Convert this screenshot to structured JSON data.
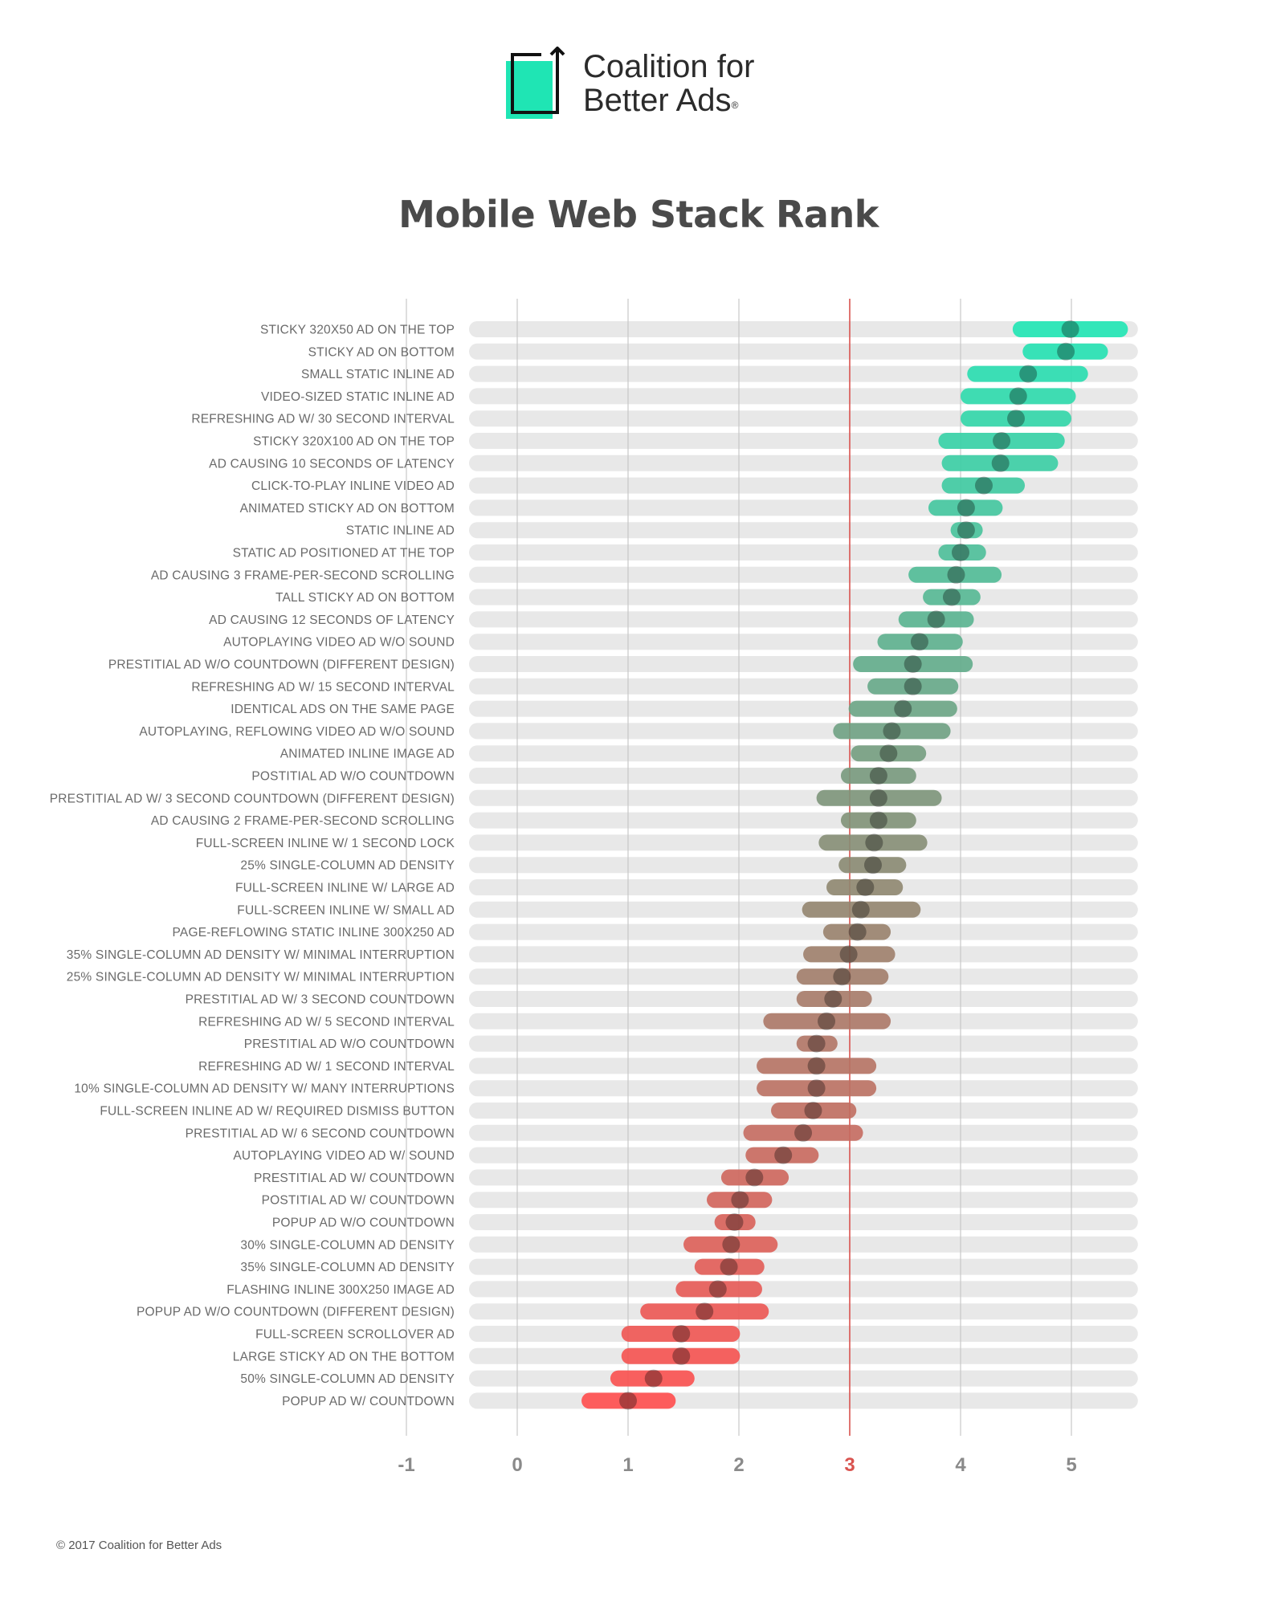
{
  "brand": {
    "name_line1": "Coalition for",
    "name_line2": "Better Ads",
    "registered_mark": "®",
    "accent": "#1fe5b4"
  },
  "footer": {
    "copyright": "© 2017 Coalition for Better Ads"
  },
  "chart_data": {
    "type": "range-dot",
    "title": "Mobile Web Stack Rank",
    "xlim": [
      -1.4,
      5.6
    ],
    "x_ticks": [
      -1,
      0,
      1,
      2,
      3,
      4,
      5
    ],
    "threshold": 3,
    "grid": true,
    "colors": {
      "high": "#1fe5b4",
      "mid": "#8a8a72",
      "low": "#ff4d4d",
      "threshold": "#d9534f",
      "track": "#e8e8e8"
    },
    "categories": [
      "STICKY 320X50 AD ON THE TOP",
      "STICKY AD ON BOTTOM",
      "SMALL STATIC INLINE AD",
      "VIDEO-SIZED STATIC INLINE AD",
      "REFRESHING AD W/ 30 SECOND INTERVAL",
      "STICKY 320X100 AD ON THE TOP",
      "AD CAUSING 10 SECONDS OF LATENCY",
      "CLICK-TO-PLAY INLINE VIDEO AD",
      "ANIMATED STICKY AD ON BOTTOM",
      "STATIC INLINE AD",
      "STATIC AD POSITIONED AT THE TOP",
      "AD CAUSING 3 FRAME-PER-SECOND SCROLLING",
      "TALL STICKY AD ON BOTTOM",
      "AD CAUSING 12 SECONDS OF LATENCY",
      "AUTOPLAYING VIDEO AD W/O SOUND",
      "PRESTITIAL AD W/O COUNTDOWN (DIFFERENT DESIGN)",
      "REFRESHING AD W/ 15 SECOND INTERVAL",
      "IDENTICAL ADS ON THE SAME PAGE",
      "AUTOPLAYING, REFLOWING VIDEO AD W/O SOUND",
      "ANIMATED INLINE IMAGE AD",
      "POSTITIAL AD W/O COUNTDOWN",
      "PRESTITIAL AD W/ 3 SECOND COUNTDOWN (DIFFERENT DESIGN)",
      "AD CAUSING 2 FRAME-PER-SECOND SCROLLING",
      "FULL-SCREEN INLINE W/ 1 SECOND LOCK",
      "25% SINGLE-COLUMN AD DENSITY",
      "FULL-SCREEN INLINE W/ LARGE AD",
      "FULL-SCREEN INLINE W/ SMALL AD",
      "PAGE-REFLOWING STATIC INLINE 300X250 AD",
      "35% SINGLE-COLUMN AD DENSITY W/ MINIMAL INTERRUPTION",
      "25% SINGLE-COLUMN AD DENSITY W/ MINIMAL INTERRUPTION",
      "PRESTITIAL AD W/ 3 SECOND COUNTDOWN",
      "REFRESHING AD W/ 5 SECOND INTERVAL",
      "PRESTITIAL AD W/O COUNTDOWN",
      "REFRESHING AD W/ 1 SECOND INTERVAL",
      "10% SINGLE-COLUMN AD DENSITY W/ MANY INTERRUPTIONS",
      "FULL-SCREEN INLINE AD W/ REQUIRED DISMISS BUTTON",
      "PRESTITIAL AD W/ 6 SECOND COUNTDOWN",
      "AUTOPLAYING VIDEO AD W/ SOUND",
      "PRESTITIAL AD W/ COUNTDOWN",
      "POSTITIAL AD W/ COUNTDOWN",
      "POPUP AD W/O COUNTDOWN",
      "30% SINGLE-COLUMN AD DENSITY",
      "35% SINGLE-COLUMN AD DENSITY",
      "FLASHING INLINE 300X250 IMAGE AD",
      "POPUP AD W/O COUNTDOWN (DIFFERENT DESIGN)",
      "FULL-SCREEN SCROLLOVER AD",
      "LARGE STICKY AD ON THE BOTTOM",
      "50% SINGLE-COLUMN AD DENSITY",
      "POPUP AD W/ COUNTDOWN"
    ],
    "low": [
      4.47,
      4.56,
      4.06,
      4.0,
      4.0,
      3.8,
      3.83,
      3.83,
      3.71,
      3.91,
      3.8,
      3.53,
      3.66,
      3.44,
      3.25,
      3.03,
      3.16,
      2.99,
      2.85,
      3.01,
      2.92,
      2.7,
      2.92,
      2.72,
      2.9,
      2.79,
      2.57,
      2.76,
      2.58,
      2.52,
      2.52,
      2.22,
      2.52,
      2.16,
      2.16,
      2.29,
      2.04,
      2.06,
      1.84,
      1.71,
      1.78,
      1.5,
      1.6,
      1.43,
      1.11,
      0.94,
      0.94,
      0.84,
      0.58
    ],
    "high": [
      5.51,
      5.33,
      5.15,
      5.04,
      5.0,
      4.94,
      4.88,
      4.58,
      4.38,
      4.2,
      4.23,
      4.37,
      4.18,
      4.12,
      4.02,
      4.11,
      3.98,
      3.97,
      3.91,
      3.69,
      3.6,
      3.83,
      3.6,
      3.7,
      3.51,
      3.48,
      3.64,
      3.37,
      3.41,
      3.35,
      3.2,
      3.37,
      2.89,
      3.24,
      3.24,
      3.06,
      3.12,
      2.72,
      2.45,
      2.3,
      2.15,
      2.35,
      2.23,
      2.21,
      2.27,
      2.01,
      2.01,
      1.6,
      1.43
    ],
    "values": [
      4.99,
      4.95,
      4.61,
      4.52,
      4.5,
      4.37,
      4.36,
      4.21,
      4.05,
      4.05,
      4.0,
      3.96,
      3.92,
      3.78,
      3.63,
      3.57,
      3.57,
      3.48,
      3.38,
      3.35,
      3.26,
      3.26,
      3.26,
      3.22,
      3.21,
      3.14,
      3.1,
      3.07,
      2.99,
      2.93,
      2.85,
      2.79,
      2.7,
      2.7,
      2.7,
      2.67,
      2.58,
      2.4,
      2.14,
      2.01,
      1.96,
      1.93,
      1.91,
      1.81,
      1.69,
      1.48,
      1.48,
      1.23,
      1.0
    ]
  }
}
